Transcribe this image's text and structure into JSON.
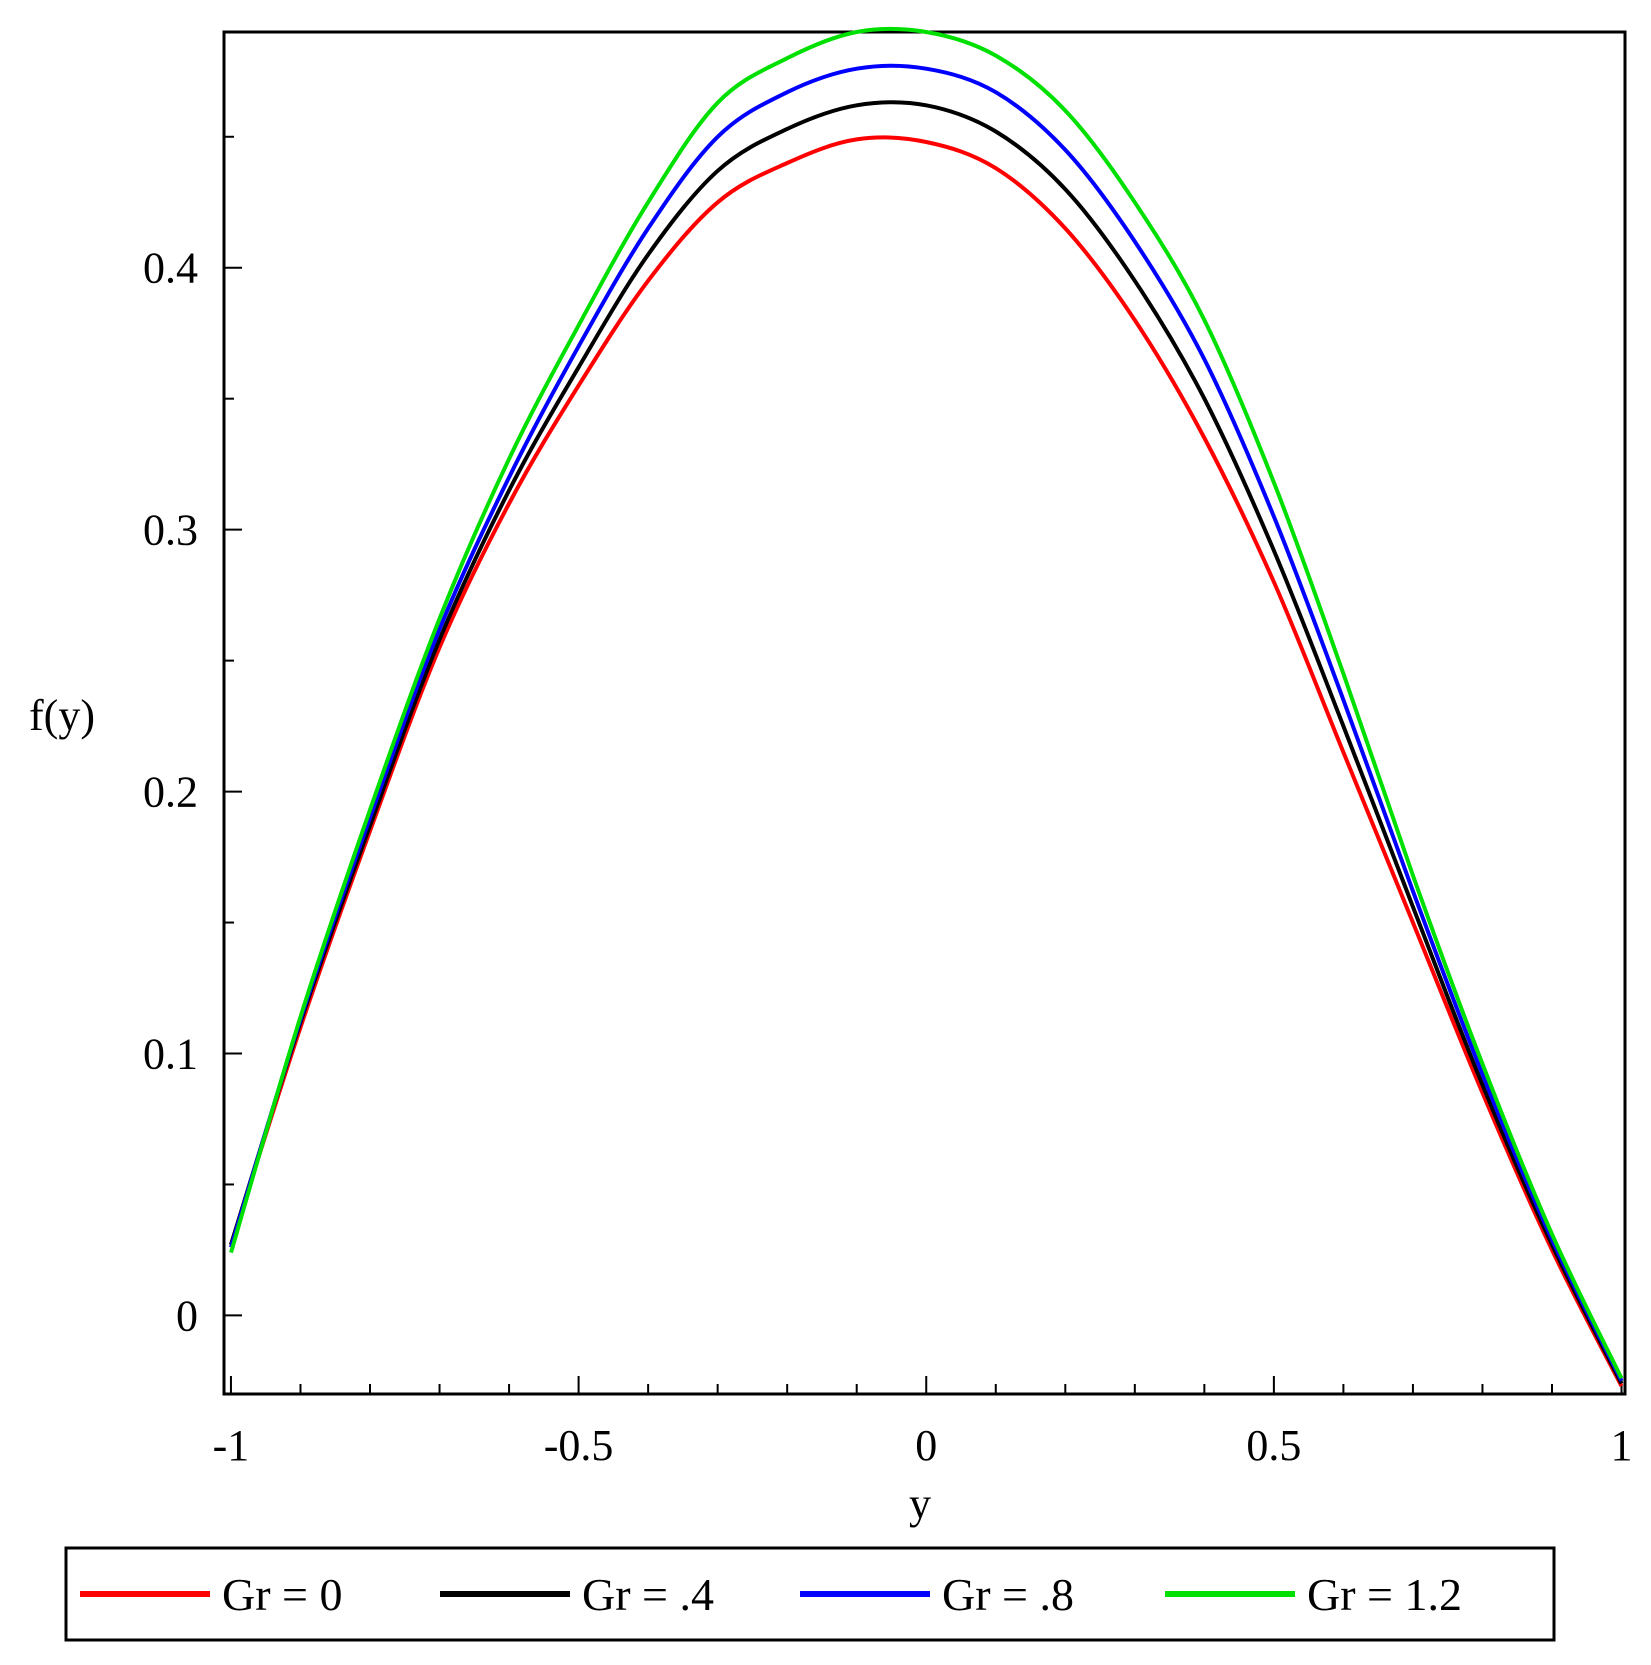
{
  "chart_data": {
    "type": "line",
    "title": "",
    "xlabel": "y",
    "ylabel": "f(y)",
    "xlim": [
      -1.0,
      1.0
    ],
    "ylim": [
      -0.03,
      0.49
    ],
    "grid": false,
    "legend_position": "bottom",
    "x_ticks": [
      {
        "value": -1,
        "label": "-1"
      },
      {
        "value": -0.5,
        "label": "-0.5"
      },
      {
        "value": 0,
        "label": "0"
      },
      {
        "value": 0.5,
        "label": "0.5"
      },
      {
        "value": 1,
        "label": "1"
      }
    ],
    "y_ticks": [
      {
        "value": 0,
        "label": "0"
      },
      {
        "value": 0.1,
        "label": "0.1"
      },
      {
        "value": 0.2,
        "label": "0.2"
      },
      {
        "value": 0.3,
        "label": "0.3"
      },
      {
        "value": 0.4,
        "label": "0.4"
      }
    ],
    "x": [
      -1.0,
      -0.9,
      -0.8,
      -0.7,
      -0.6,
      -0.5,
      -0.4,
      -0.3,
      -0.2,
      -0.1,
      0.0,
      0.1,
      0.2,
      0.3,
      0.4,
      0.5,
      0.6,
      0.7,
      0.8,
      0.9,
      1.0
    ],
    "series": [
      {
        "name": "Gr = 0",
        "color": "#ff0000",
        "values": [
          0.027,
          0.11,
          0.185,
          0.255,
          0.31,
          0.355,
          0.395,
          0.425,
          0.44,
          0.449,
          0.448,
          0.438,
          0.415,
          0.38,
          0.335,
          0.28,
          0.215,
          0.15,
          0.085,
          0.025,
          -0.027
        ]
      },
      {
        "name": "Gr = .4",
        "color": "#000000",
        "values": [
          0.027,
          0.112,
          0.187,
          0.258,
          0.315,
          0.362,
          0.405,
          0.437,
          0.453,
          0.462,
          0.462,
          0.452,
          0.43,
          0.395,
          0.35,
          0.292,
          0.225,
          0.156,
          0.088,
          0.027,
          -0.026
        ]
      },
      {
        "name": "Gr = .8",
        "color": "#0000ff",
        "values": [
          0.026,
          0.113,
          0.19,
          0.262,
          0.32,
          0.37,
          0.415,
          0.45,
          0.467,
          0.476,
          0.476,
          0.467,
          0.445,
          0.41,
          0.365,
          0.305,
          0.235,
          0.162,
          0.092,
          0.029,
          -0.025
        ]
      },
      {
        "name": "Gr = 1.2",
        "color": "#00e000",
        "values": [
          0.024,
          0.114,
          0.193,
          0.266,
          0.327,
          0.378,
          0.425,
          0.463,
          0.48,
          0.49,
          0.49,
          0.481,
          0.46,
          0.425,
          0.38,
          0.318,
          0.245,
          0.168,
          0.096,
          0.031,
          -0.024
        ]
      }
    ]
  }
}
